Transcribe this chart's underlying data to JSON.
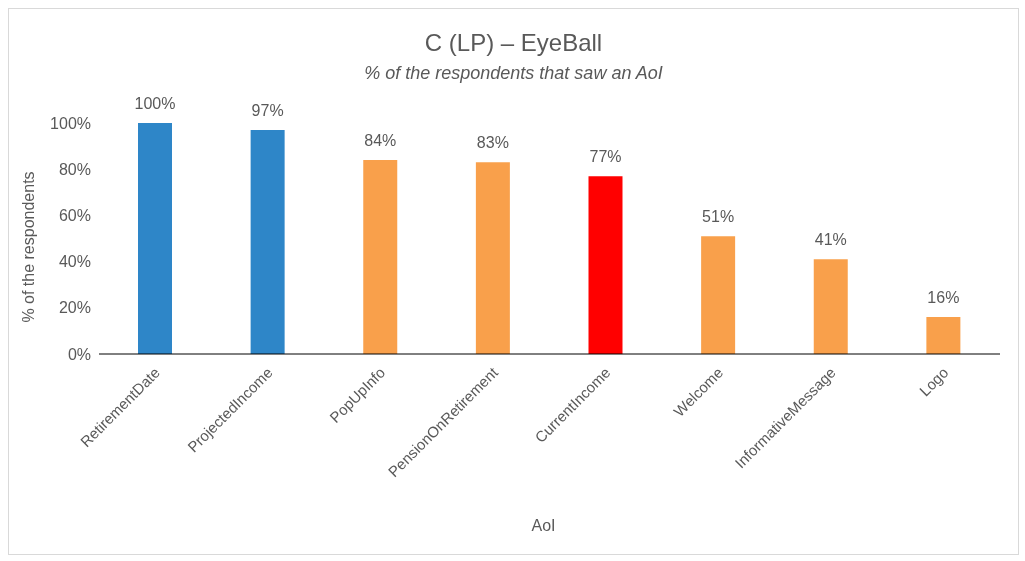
{
  "chart_data": {
    "type": "bar",
    "title": "C (LP) – EyeBall",
    "subtitle": "% of the respondents that saw an AoI",
    "xlabel": "AoI",
    "ylabel": "% of the respondents",
    "categories": [
      "RetirementDate",
      "ProjectedIncome",
      "PopUpInfo",
      "PensionOnRetirement",
      "CurrentIncome",
      "Welcome",
      "InformativeMessage",
      "Logo"
    ],
    "values": [
      100,
      97,
      84,
      83,
      77,
      51,
      41,
      16
    ],
    "colors": [
      "#2e86c8",
      "#2e86c8",
      "#f9a04b",
      "#f9a04b",
      "#ff0000",
      "#f9a04b",
      "#f9a04b",
      "#f9a04b"
    ],
    "value_labels": [
      "100%",
      "97%",
      "84%",
      "83%",
      "77%",
      "51%",
      "41%",
      "16%"
    ],
    "ylim": [
      0,
      100
    ],
    "yticks": [
      {
        "value": 0,
        "label": "0%"
      },
      {
        "value": 20,
        "label": "20%"
      },
      {
        "value": 40,
        "label": "40%"
      },
      {
        "value": 60,
        "label": "60%"
      },
      {
        "value": 80,
        "label": "80%"
      },
      {
        "value": 100,
        "label": "100%"
      }
    ],
    "grid": false,
    "legend": false
  }
}
